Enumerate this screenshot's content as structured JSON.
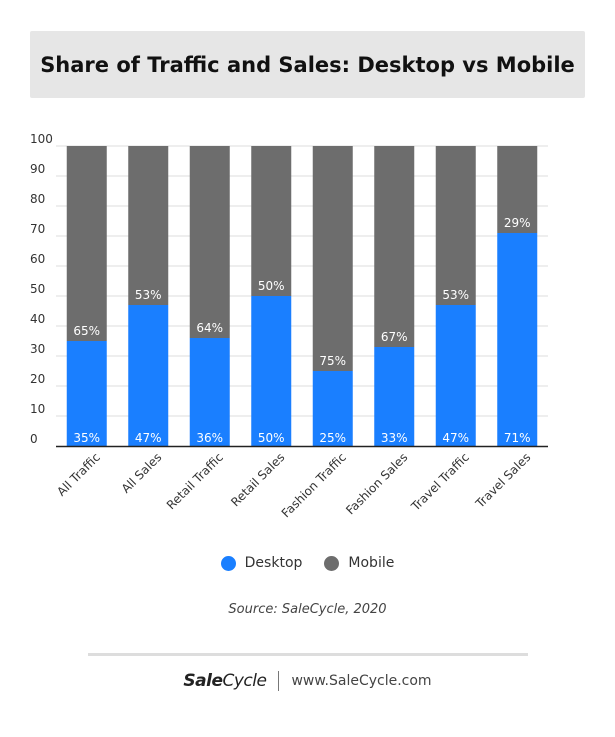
{
  "header": {
    "title": "Share of Traffic and Sales: Desktop vs Mobile"
  },
  "colors": {
    "desktop": "#1a7fff",
    "mobile": "#6d6d6d",
    "grid": "#dcdcdc"
  },
  "chart_data": {
    "type": "bar",
    "stacked": true,
    "title": "Share of Traffic and Sales: Desktop vs Mobile",
    "categories": [
      "All Traffic",
      "All Sales",
      "Retail Traffic",
      "Retail Sales",
      "Fashion Traffic",
      "Fashion Sales",
      "Travel Traffic",
      "Travel Sales"
    ],
    "series": [
      {
        "name": "Desktop",
        "values": [
          35,
          47,
          36,
          50,
          25,
          33,
          47,
          71
        ],
        "labels": [
          "35%",
          "47%",
          "36%",
          "50%",
          "25%",
          "33%",
          "47%",
          "71%"
        ]
      },
      {
        "name": "Mobile",
        "values": [
          65,
          53,
          64,
          50,
          75,
          67,
          53,
          29
        ],
        "labels": [
          "65%",
          "53%",
          "64%",
          "50%",
          "75%",
          "67%",
          "53%",
          "29%"
        ]
      }
    ],
    "yticks": [
      "0",
      "10",
      "20",
      "30",
      "40",
      "50",
      "60",
      "70",
      "80",
      "90",
      "100"
    ],
    "ylim": [
      0,
      100
    ],
    "grid": true,
    "legend_position": "bottom"
  },
  "legend": {
    "desktop_label": "Desktop",
    "mobile_label": "Mobile"
  },
  "source": "Source: SaleCycle, 2020",
  "footer": {
    "brand_bold": "Sale",
    "brand_light": "Cycle",
    "url": "www.SaleCycle.com"
  }
}
